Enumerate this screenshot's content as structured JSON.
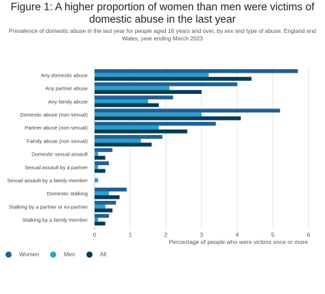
{
  "chart_data": {
    "type": "bar",
    "orientation": "horizontal",
    "title": "Figure 1: A higher proportion of women than men were victims of domestic abuse in the last year",
    "subtitle": "Prevalence of domestic abuse in the last year for people aged 16 years and over, by sex and type of abuse, England and Wales, year ending March 2023",
    "xlabel": "Percentage of people who were victims once or more",
    "ylabel": "",
    "xlim": [
      0,
      6
    ],
    "xticks": [
      "0",
      "1",
      "2",
      "3",
      "4",
      "5",
      "6"
    ],
    "grid": true,
    "legend_position": "bottom-left",
    "categories": [
      "Any domestic abuse",
      "Any partner abuse",
      "Any family abuse",
      "Domestic abuse (non-sexual)",
      "Partner abuse (non-sexual)",
      "Family abuse (non sexual)",
      "Domestic sexual assault",
      "Sexual assault by a partner",
      "Sexual assault by a family member",
      "Domestic stalking",
      "Stalking by a partner or ex-partner",
      "Stalking by a family member"
    ],
    "series": [
      {
        "name": "Women",
        "color": "#206095",
        "values": [
          5.7,
          4.0,
          2.2,
          5.2,
          3.4,
          1.9,
          0.5,
          0.4,
          0.0,
          0.9,
          0.6,
          0.4
        ]
      },
      {
        "name": "Men",
        "color": "#27a0cc",
        "values": [
          3.2,
          2.1,
          1.5,
          3.0,
          1.8,
          1.3,
          0.1,
          0.1,
          0.1,
          0.4,
          0.3,
          0.1
        ]
      },
      {
        "name": "All",
        "color": "#003c57",
        "values": [
          4.4,
          3.0,
          1.8,
          4.1,
          2.6,
          1.6,
          0.3,
          0.3,
          0.0,
          0.7,
          0.5,
          0.3
        ]
      }
    ]
  }
}
